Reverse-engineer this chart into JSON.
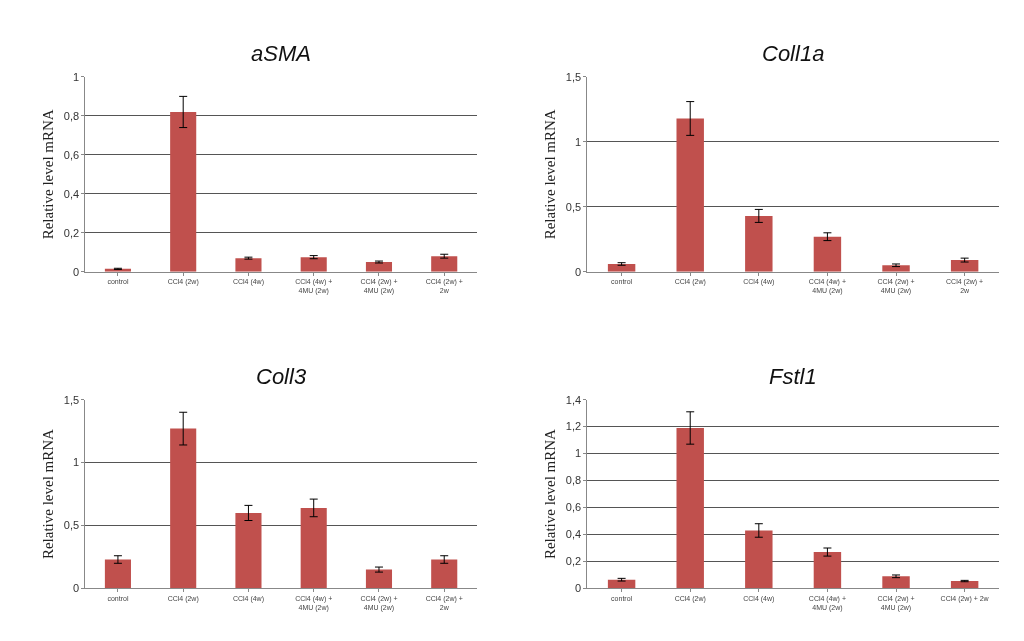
{
  "chart_data": [
    {
      "type": "bar",
      "title": "aSMA",
      "ylabel": "Relative level mRNA",
      "color": "#c0504d",
      "grid": "y",
      "categories": [
        "control",
        "CCl4 (2w)",
        "CCl4 (4w)",
        "CCl4 (4w) +\n4MU (2w)",
        "CCl4 (2w) +\n4MU (2w)",
        "CCl4 (2w) +\n2w"
      ],
      "values": [
        0.015,
        0.82,
        0.07,
        0.075,
        0.05,
        0.08
      ],
      "errors": [
        0.003,
        0.08,
        0.005,
        0.008,
        0.005,
        0.01
      ],
      "ylim": [
        0,
        1
      ],
      "yticks": [
        0,
        {
          "value": 0.2,
          "label": "0,2"
        },
        {
          "value": 0.4,
          "label": "0,4"
        },
        {
          "value": 0.6,
          "label": "0,6"
        },
        {
          "value": 0.8,
          "label": "0,8"
        },
        1
      ]
    },
    {
      "type": "bar",
      "title": "Coll1a",
      "ylabel": "Relative level mRNA",
      "color": "#c0504d",
      "grid": "y",
      "categories": [
        "control",
        "CCl4 (2w)",
        "CCl4 (4w)",
        "CCl4 (4w) +\n4MU (2w)",
        "CCl4 (2w) +\n4MU (2w)",
        "CCl4 (2w) +\n2w"
      ],
      "values": [
        0.06,
        1.18,
        0.43,
        0.27,
        0.05,
        0.09
      ],
      "errors": [
        0.01,
        0.13,
        0.05,
        0.03,
        0.01,
        0.015
      ],
      "ylim": [
        0,
        1.5
      ],
      "yticks": [
        0,
        {
          "value": 0.5,
          "label": "0,5"
        },
        1,
        {
          "value": 1.5,
          "label": "1,5"
        }
      ]
    },
    {
      "type": "bar",
      "title": "Coll3",
      "ylabel": "Relative level mRNA",
      "color": "#c0504d",
      "grid": "y",
      "categories": [
        "control",
        "CCl4 (2w)",
        "CCl4 (4w)",
        "CCl4 (4w) +\n4MU (2w)",
        "CCl4 (2w) +\n4MU (2w)",
        "CCl4 (2w) +\n2w"
      ],
      "values": [
        0.23,
        1.27,
        0.6,
        0.64,
        0.15,
        0.23
      ],
      "errors": [
        0.03,
        0.13,
        0.06,
        0.07,
        0.02,
        0.03
      ],
      "ylim": [
        0,
        1.5
      ],
      "yticks": [
        0,
        {
          "value": 0.5,
          "label": "0,5"
        },
        1,
        {
          "value": 1.5,
          "label": "1,5"
        }
      ]
    },
    {
      "type": "bar",
      "title": "Fstl1",
      "ylabel": "Relative level mRNA",
      "color": "#c0504d",
      "grid": "y",
      "categories": [
        "control",
        "CCl4 (2w)",
        "CCl4 (4w)",
        "CCl4 (4w) +\n4MU (2w)",
        "CCl4 (2w) +\n4MU (2w)",
        "CCl4 (2w) + 2w"
      ],
      "values": [
        0.065,
        1.19,
        0.43,
        0.27,
        0.09,
        0.055
      ],
      "errors": [
        0.01,
        0.12,
        0.05,
        0.03,
        0.01,
        0.005
      ],
      "ylim": [
        0,
        1.4
      ],
      "yticks": [
        0,
        {
          "value": 0.2,
          "label": "0,2"
        },
        {
          "value": 0.4,
          "label": "0,4"
        },
        {
          "value": 0.6,
          "label": "0,6"
        },
        {
          "value": 0.8,
          "label": "0,8"
        },
        1,
        {
          "value": 1.2,
          "label": "1,2"
        },
        {
          "value": 1.4,
          "label": "1,4"
        }
      ]
    }
  ]
}
